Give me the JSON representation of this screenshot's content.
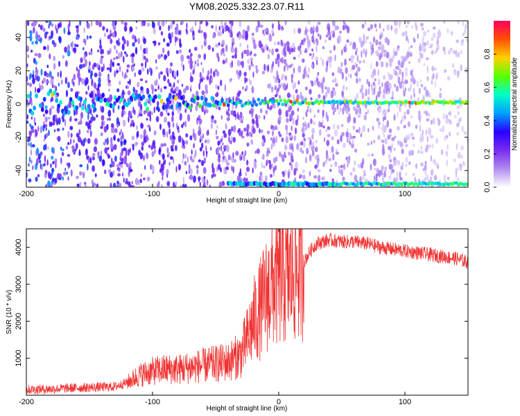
{
  "figure_title": "YM08.2025.332.23.07.R11",
  "chart_data": [
    {
      "type": "heatmap",
      "title": "YM08.2025.332.23.07.R11",
      "xlabel": "Height of straight line (km)",
      "ylabel": "Frequency (Hz)",
      "xlim": [
        -200,
        150
      ],
      "ylim": [
        -50,
        50
      ],
      "x_ticks": [
        -200,
        -100,
        0,
        100
      ],
      "y_ticks": [
        -40,
        -20,
        0,
        20,
        40
      ],
      "colorbar": {
        "label": "Normalized spectral amplitude",
        "range": [
          0,
          1
        ],
        "ticks": [
          0.0,
          0.2,
          0.4,
          0.6,
          0.8
        ],
        "colors": [
          "#ffffff",
          "#b08cf0",
          "#7a2cf0",
          "#2a00ff",
          "#00a0ff",
          "#00ffc8",
          "#5aff00",
          "#ffd000",
          "#ff5000",
          "#ff0060"
        ]
      },
      "features": [
        {
          "name": "carrier line",
          "frequency_hz": 1,
          "x_start_km": -200,
          "x_end_km": 150,
          "peak_amplitude": 0.95
        },
        {
          "name": "aliased line",
          "frequency_hz": -48,
          "x_start_km": -40,
          "x_end_km": 150,
          "peak_amplitude": 0.6
        }
      ]
    },
    {
      "type": "line",
      "xlabel": "Height of straight line (km)",
      "ylabel": "SNR (10 * v/v)",
      "xlim": [
        -200,
        150
      ],
      "ylim": [
        0,
        4500
      ],
      "x_ticks": [
        -200,
        -100,
        0,
        100
      ],
      "y_ticks": [
        1000,
        2000,
        3000,
        4000
      ],
      "line_color": "#f03232",
      "series": [
        {
          "x": [
            -200,
            -180,
            -160,
            -140,
            -130,
            -120,
            -110,
            -100,
            -90,
            -80,
            -70,
            -60,
            -50,
            -40,
            -30,
            -25,
            -20,
            -15,
            -10,
            -5,
            0,
            5,
            10,
            15,
            20,
            25,
            30,
            40,
            50,
            60,
            70,
            80,
            90,
            100,
            110,
            120,
            130,
            140,
            150
          ],
          "y": [
            150,
            170,
            200,
            220,
            230,
            350,
            550,
            650,
            700,
            700,
            750,
            800,
            850,
            900,
            1100,
            1500,
            2000,
            2300,
            2700,
            3000,
            3100,
            3200,
            3300,
            3400,
            3600,
            3900,
            4100,
            4200,
            4150,
            4150,
            4100,
            4000,
            3950,
            3900,
            3850,
            3800,
            3750,
            3700,
            3600
          ]
        }
      ]
    }
  ]
}
